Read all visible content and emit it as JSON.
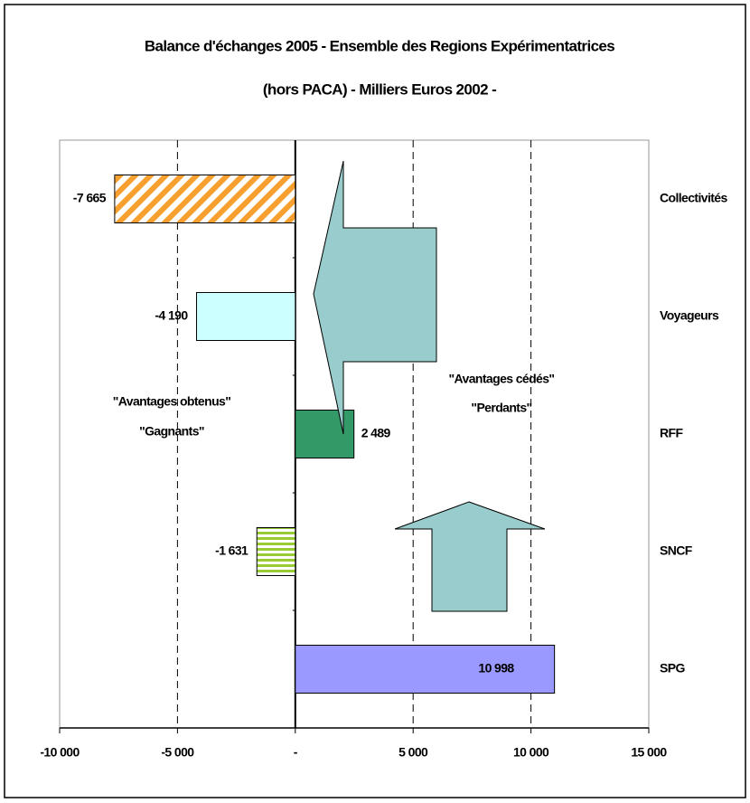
{
  "chart_data": {
    "type": "barh",
    "title": [
      "Balance d'échanges 2005 - Ensemble des Regions Expérimentatrices",
      "(hors PACA) - Milliers Euros 2002 -"
    ],
    "categories": [
      "Collectivités",
      "Voyageurs",
      "RFF",
      "SNCF",
      "SPG"
    ],
    "values": [
      -7665,
      -4190,
      2489,
      -1631,
      10998
    ],
    "value_labels": [
      "-7 665",
      "-4 190",
      "2 489",
      "-1 631",
      "10 998"
    ],
    "colors": [
      "#f7a030",
      "#ccffff",
      "#339966",
      "#99cc33",
      "#9999ff"
    ],
    "patterns": [
      "diagonal",
      "none",
      "none",
      "horizontal",
      "none"
    ],
    "xlim": [
      -10000,
      15000
    ],
    "xticks": [
      {
        "value": -10000,
        "label": "-10 000"
      },
      {
        "value": -5000,
        "label": "-5 000"
      },
      {
        "value": 0,
        "label": "-"
      },
      {
        "value": 5000,
        "label": "5 000"
      },
      {
        "value": 10000,
        "label": "10 000"
      },
      {
        "value": 15000,
        "label": "15 000"
      }
    ],
    "grid": true,
    "annotations": [
      "\"Avantages obtenus\"",
      "\"Gagnants\"",
      "\"Avantages cédés\"",
      "\"Perdants\""
    ]
  }
}
